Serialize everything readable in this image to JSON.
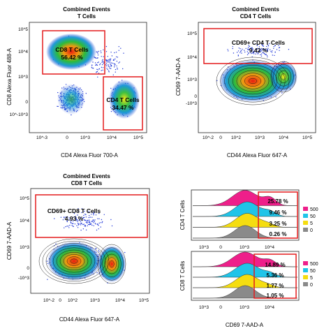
{
  "chart_data": [
    {
      "type": "scatter",
      "title": "Combined Events",
      "subtitle": "T Cells",
      "xlabel": "CD4 Alexa Fluor 700-A",
      "ylabel": "CD8 Alexa Fluor 488-A",
      "xticks": [
        "10^-3",
        "0",
        "10^3",
        "10^4",
        "10^5"
      ],
      "yticks": [
        "10^-10^3",
        "0",
        "10^3",
        "10^4",
        "10^5"
      ],
      "gates": [
        {
          "name": "CD8 T Cells",
          "percent": "56.42 %"
        },
        {
          "name": "CD4 T Cells",
          "percent": "34.47 %"
        }
      ]
    },
    {
      "type": "scatter",
      "title": "Combined Events",
      "subtitle": "CD4 T Cells",
      "xlabel": "CD44 Alexa Fluor 647-A",
      "ylabel": "CD69 7-AAD-A",
      "xticks": [
        "10^-2",
        "0",
        "10^2",
        "10^3",
        "10^4",
        "10^5"
      ],
      "yticks": [
        "-10^3",
        "0",
        "10^3",
        "10^4",
        "10^5"
      ],
      "gates": [
        {
          "name": "CD69+ CD4 T Cells",
          "percent": "9.42 %"
        }
      ]
    },
    {
      "type": "scatter",
      "title": "Combined Events",
      "subtitle": "CD8 T Cells",
      "xlabel": "CD44 Alexa Fluor 647-A",
      "ylabel": "CD69 7-AAD-A",
      "xticks": [
        "10^-2",
        "0",
        "10^2",
        "10^3",
        "10^4",
        "10^5"
      ],
      "yticks": [
        "-10^3",
        "0",
        "10^3",
        "10^4",
        "10^5"
      ],
      "gates": [
        {
          "name": "CD69+ CD8 T Cells",
          "percent": "4.93 %"
        }
      ]
    },
    {
      "type": "area",
      "xlabel": "CD69 7-AAD-A",
      "xticks": [
        "10^3",
        "0",
        "10^3",
        "10^4"
      ],
      "legend_position": "right",
      "legend": [
        {
          "label": "500",
          "color": "#ee1f8a"
        },
        {
          "label": "50",
          "color": "#20c4e8"
        },
        {
          "label": "5",
          "color": "#f5dd10"
        },
        {
          "label": "0",
          "color": "#8a8a8a"
        }
      ],
      "panels": [
        {
          "ylabel": "CD4 T Cells",
          "percents": [
            "25.78 %",
            "9.46 %",
            "3.25 %",
            "0.26 %"
          ]
        },
        {
          "ylabel": "CD8 T Cells",
          "percents": [
            "14.89 %",
            "5.36 %",
            "1.77 %",
            "1.05 %"
          ]
        }
      ]
    }
  ]
}
